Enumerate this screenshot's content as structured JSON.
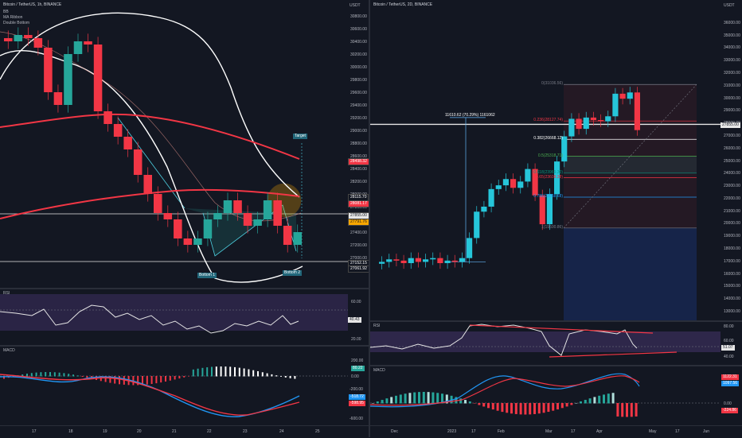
{
  "left": {
    "title": "Bitcoin / TetherUS, 1h, BINANCE",
    "legend": [
      "BB",
      "MA Ribbon",
      "Double Bottom"
    ],
    "price_axis_unit": "USDT",
    "price_ticks": [
      "30800.00",
      "30600.00",
      "30400.00",
      "30200.00",
      "30000.00",
      "29800.00",
      "29600.00",
      "29400.00",
      "29200.00",
      "29000.00",
      "28800.00",
      "28600.00",
      "28400.00",
      "28200.00",
      "28000.00",
      "27800.00",
      "27600.00",
      "27400.00",
      "27200.00",
      "27000.00",
      "26800.00"
    ],
    "price_tags": [
      {
        "text": "28498.32",
        "color": "#f23645"
      },
      {
        "text": "28115.70",
        "color": "#131722"
      },
      {
        "text": "28081.17",
        "color": "#f23645"
      },
      {
        "text": "27855.00",
        "color": "#e6e6e6"
      },
      {
        "text": "27791.76",
        "color": "#f7a600"
      },
      {
        "text": "27152.15",
        "color": "#131722"
      },
      {
        "text": "27061.92",
        "color": "#131722"
      }
    ],
    "labels": {
      "target": "Target",
      "bottom1": "Bottom 1",
      "bottom2": "Bottom 2"
    },
    "rsi": {
      "name": "RSI",
      "ticks": [
        "60.00",
        "40.43",
        "20.00"
      ],
      "value_tag": "40.43"
    },
    "macd": {
      "name": "MACD",
      "ticks": [
        "200.00",
        "0.00",
        "-200.00",
        "-400.00",
        "-600.00"
      ],
      "tags": [
        {
          "text": "80.22",
          "color": "#26a69a"
        },
        {
          "text": "-518.72",
          "color": "#2196f3"
        },
        {
          "text": "-598.95",
          "color": "#f23645"
        }
      ]
    },
    "time_ticks": [
      "17",
      "18",
      "19",
      "20",
      "21",
      "22",
      "23",
      "24",
      "25"
    ]
  },
  "right": {
    "title": "Bitcoin / TetherUS, 2D, BINANCE",
    "price_axis_unit": "USDT",
    "price_ticks": [
      "36000.00",
      "35000.00",
      "34000.00",
      "33000.00",
      "32000.00",
      "31000.00",
      "30000.00",
      "29000.00",
      "28000.00",
      "27000.00",
      "26000.00",
      "25000.00",
      "24000.00",
      "23000.00",
      "22000.00",
      "21000.00",
      "20000.00",
      "19000.00",
      "18000.00",
      "17000.00",
      "16000.00",
      "15000.00",
      "14000.00",
      "13000.00"
    ],
    "price_tag": {
      "text": "27855.00",
      "color": "#e6e6e6"
    },
    "measure_label": "11610.62 (70.29%) 1161062",
    "fib_levels": [
      {
        "label": "0(31036.56)",
        "color": "#787b86"
      },
      {
        "label": "0.236(28127.74)",
        "color": "#f23645"
      },
      {
        "label": "0.382(26668.12)",
        "color": "#ffffff"
      },
      {
        "label": "0.5(25318.71)",
        "color": "#4caf50"
      },
      {
        "label": "0.618(23969.30)",
        "color": "#089981"
      },
      {
        "label": "0.65(23608.38)",
        "color": "#f23645"
      },
      {
        "label": "0.786(22058.68)",
        "color": "#2196f3"
      },
      {
        "label": "1(19600.86)",
        "color": "#787b86"
      }
    ],
    "rsi": {
      "name": "RSI",
      "ticks": [
        "80.00",
        "60.00",
        "40.00"
      ],
      "value_tag": "51.07"
    },
    "macd": {
      "name": "MACD",
      "ticks": [
        "0.00"
      ],
      "tags": [
        {
          "text": "1122.31",
          "color": "#f23645"
        },
        {
          "text": "1097.56",
          "color": "#2196f3"
        },
        {
          "text": "-224.86",
          "color": "#f23645"
        }
      ]
    },
    "time_ticks": [
      "Dec",
      "2023",
      "17",
      "Feb",
      "Mar",
      "17",
      "Apr",
      "May",
      "17",
      "Jun"
    ]
  },
  "chart_data": [
    {
      "type": "candlestick",
      "title": "Bitcoin / TetherUS, 1h, BINANCE",
      "ylim": [
        26700,
        30950
      ],
      "x": [
        "17",
        "18",
        "19",
        "20",
        "21",
        "22",
        "23",
        "24",
        "25"
      ],
      "close_path": [
        30400,
        30500,
        30450,
        30300,
        29600,
        29400,
        30200,
        30400,
        30350,
        29300,
        29100,
        28900,
        28700,
        28300,
        28000,
        27700,
        27600,
        27300,
        27200,
        27300,
        27600,
        27700,
        27900,
        27700,
        27500,
        27600,
        27900,
        27500,
        27200,
        27400
      ],
      "series": [
        {
          "name": "BB"
        },
        {
          "name": "MA Ribbon"
        }
      ],
      "annotations": [
        "Target",
        "Bottom 1",
        "Bottom 2"
      ]
    },
    {
      "type": "candlestick",
      "title": "Bitcoin / TetherUS, 2D, BINANCE",
      "ylim": [
        13000,
        36500
      ],
      "x": [
        "Dec",
        "2023",
        "17",
        "Feb",
        "Mar",
        "17",
        "Apr",
        "May",
        "17",
        "Jun"
      ],
      "close_path": [
        16900,
        17100,
        17000,
        16800,
        17200,
        16900,
        17100,
        17200,
        16800,
        17000,
        16900,
        17200,
        18800,
        20900,
        21300,
        22700,
        23000,
        23500,
        22800,
        23300,
        24300,
        22200,
        19900,
        22300,
        24900,
        26900,
        28300,
        27500,
        28400,
        28200,
        28100,
        28500,
        30300,
        29900,
        30400,
        27400
      ],
      "fib_values": [
        31036.56,
        28127.74,
        26668.12,
        25318.71,
        23969.3,
        23608.38,
        22058.68,
        19600.86
      ]
    }
  ]
}
